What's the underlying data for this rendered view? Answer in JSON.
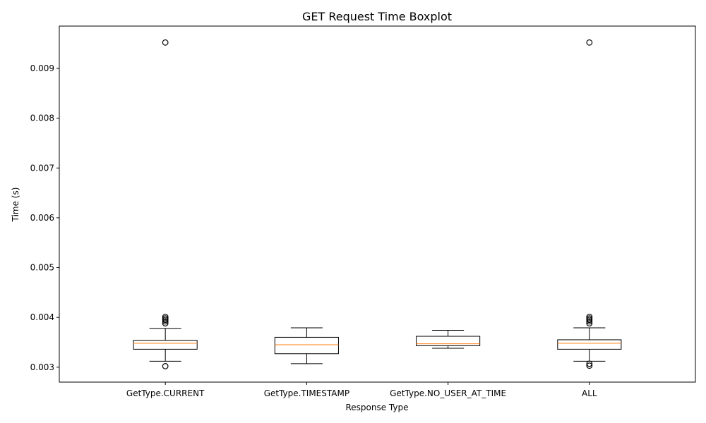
{
  "chart_data": {
    "type": "boxplot",
    "title": "GET Request Time Boxplot",
    "xlabel": "Response Type",
    "ylabel": "Time (s)",
    "ylim": [
      0.0027,
      0.00985
    ],
    "yticks": [
      0.003,
      0.004,
      0.005,
      0.006,
      0.007,
      0.008,
      0.009
    ],
    "ytick_labels": [
      "0.003",
      "0.004",
      "0.005",
      "0.006",
      "0.007",
      "0.008",
      "0.009"
    ],
    "grid": false,
    "colors": {
      "box": "#000000",
      "median": "#ff7f0e",
      "flier": "#000000"
    },
    "categories": [
      "GetType.CURRENT",
      "GetType.TIMESTAMP",
      "GetType.NO_USER_AT_TIME",
      "ALL"
    ],
    "boxes": [
      {
        "whisker_low": 0.00312,
        "q1": 0.00336,
        "median": 0.00348,
        "q3": 0.00354,
        "whisker_high": 0.00378,
        "fliers": [
          0.00952,
          0.00401,
          0.00398,
          0.00395,
          0.00392,
          0.00388,
          0.00302
        ]
      },
      {
        "whisker_low": 0.00307,
        "q1": 0.00327,
        "median": 0.00345,
        "q3": 0.0036,
        "whisker_high": 0.00379,
        "fliers": []
      },
      {
        "whisker_low": 0.00338,
        "q1": 0.00343,
        "median": 0.00347,
        "q3": 0.00362,
        "whisker_high": 0.00374,
        "fliers": []
      },
      {
        "whisker_low": 0.00312,
        "q1": 0.00336,
        "median": 0.00348,
        "q3": 0.00355,
        "whisker_high": 0.00379,
        "fliers": [
          0.00952,
          0.00401,
          0.00398,
          0.00395,
          0.00392,
          0.00388,
          0.00307,
          0.00303
        ]
      }
    ]
  }
}
